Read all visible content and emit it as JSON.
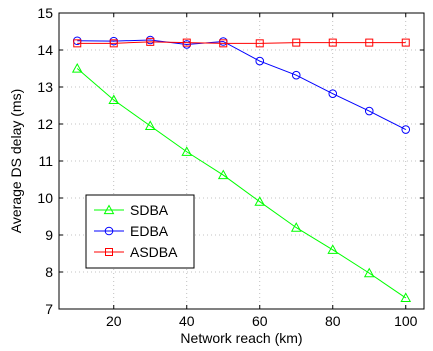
{
  "chart_data": {
    "type": "line",
    "title": "",
    "xlabel": "Network reach (km)",
    "ylabel": "Average DS delay (ms)",
    "xlim": [
      5,
      105
    ],
    "ylim": [
      7,
      15
    ],
    "xticks": [
      20,
      40,
      60,
      80,
      100
    ],
    "yticks": [
      7,
      8,
      9,
      10,
      11,
      12,
      13,
      14,
      15
    ],
    "grid": true,
    "legend_position": "bottom-left",
    "x": [
      10,
      20,
      30,
      40,
      50,
      60,
      70,
      80,
      90,
      100
    ],
    "series": [
      {
        "name": "SDBA",
        "color": "#00ff00",
        "marker": "triangle",
        "values": [
          13.5,
          12.65,
          11.95,
          11.25,
          10.62,
          9.9,
          9.2,
          8.6,
          7.97,
          7.3
        ]
      },
      {
        "name": "EDBA",
        "color": "#0000ff",
        "marker": "circle",
        "values": [
          14.25,
          14.24,
          14.27,
          14.15,
          14.23,
          13.7,
          13.32,
          12.82,
          12.35,
          11.85
        ]
      },
      {
        "name": "ASDBA",
        "color": "#ff0000",
        "marker": "square",
        "values": [
          14.18,
          14.18,
          14.22,
          14.2,
          14.18,
          14.18,
          14.2,
          14.2,
          14.2,
          14.2
        ]
      }
    ]
  }
}
